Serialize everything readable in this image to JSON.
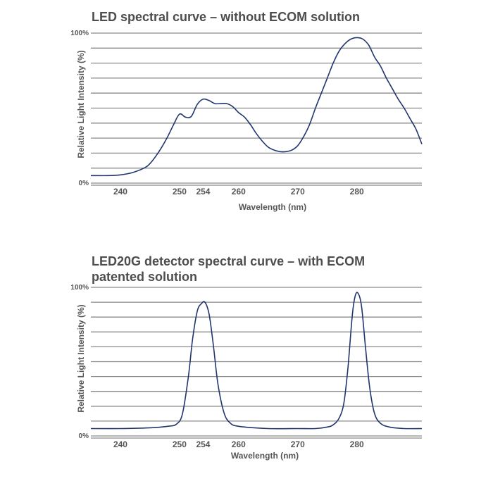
{
  "colors": {
    "curve": "#23356e",
    "grid": "#8a8a8a",
    "text": "#4d4d4d"
  },
  "chart_data": [
    {
      "type": "line",
      "title_lines": [
        "LED spectral curve – without ECOM solution"
      ],
      "xlabel": "Wavelength (nm)",
      "ylabel": "Relative Light Intensity (%)",
      "x_ticks": [
        240,
        250,
        254,
        260,
        270,
        280
      ],
      "y_ticks": [
        "0%",
        "100%"
      ],
      "xlim": [
        235,
        291
      ],
      "ylim": [
        0,
        100
      ],
      "grid": true,
      "series": [
        {
          "x": [
            235,
            238,
            240,
            242,
            244,
            245,
            246,
            247,
            248,
            249,
            250,
            251,
            252,
            253,
            254,
            255,
            256,
            257,
            258,
            259,
            260,
            261,
            262,
            263,
            264,
            265,
            266,
            267,
            268,
            269,
            270,
            271,
            272,
            273,
            274,
            275,
            276,
            277,
            278,
            279,
            280,
            281,
            282,
            283,
            284,
            285,
            286,
            287,
            288,
            289,
            290,
            291
          ],
          "y": [
            5,
            5,
            5.5,
            7,
            10,
            13,
            18,
            24,
            31,
            39,
            46,
            44,
            44.5,
            52.5,
            56,
            55,
            53,
            53,
            53,
            51,
            47,
            44,
            39,
            33,
            28,
            24,
            22,
            21,
            21,
            22,
            25,
            31,
            39,
            50,
            60,
            70,
            80,
            88,
            93,
            96,
            97,
            96,
            92,
            84,
            78,
            70,
            63,
            56,
            50,
            43,
            36,
            26
          ]
        }
      ]
    },
    {
      "type": "line",
      "title_lines": [
        "LED20G detector spectral curve – with ECOM",
        "patented solution"
      ],
      "xlabel": "Wavelength (nm)",
      "ylabel": "Relative Light Intensity (%)",
      "x_ticks": [
        240,
        250,
        254,
        260,
        270,
        280
      ],
      "y_ticks": [
        "0%",
        "100%"
      ],
      "xlim": [
        235,
        291
      ],
      "ylim": [
        0,
        100
      ],
      "grid": true,
      "series": [
        {
          "x": [
            235,
            240,
            245,
            248,
            249.5,
            250.5,
            251.5,
            252.2,
            253,
            253.7,
            254.3,
            255,
            255.7,
            256.5,
            257.5,
            258.5,
            260,
            265,
            270,
            273,
            275,
            276,
            277,
            277.8,
            278.5,
            279.2,
            279.7,
            280.2,
            280.8,
            281.5,
            282.2,
            283,
            284,
            285.5,
            288,
            291
          ],
          "y": [
            5,
            5,
            5.5,
            6.5,
            8,
            15,
            40,
            65,
            84,
            89,
            90,
            82,
            62,
            35,
            16,
            9,
            6.5,
            5,
            5,
            5,
            6,
            7.5,
            12,
            22,
            46,
            80,
            94,
            96,
            87,
            58,
            32,
            15,
            8.5,
            6,
            5,
            5
          ]
        }
      ]
    }
  ]
}
